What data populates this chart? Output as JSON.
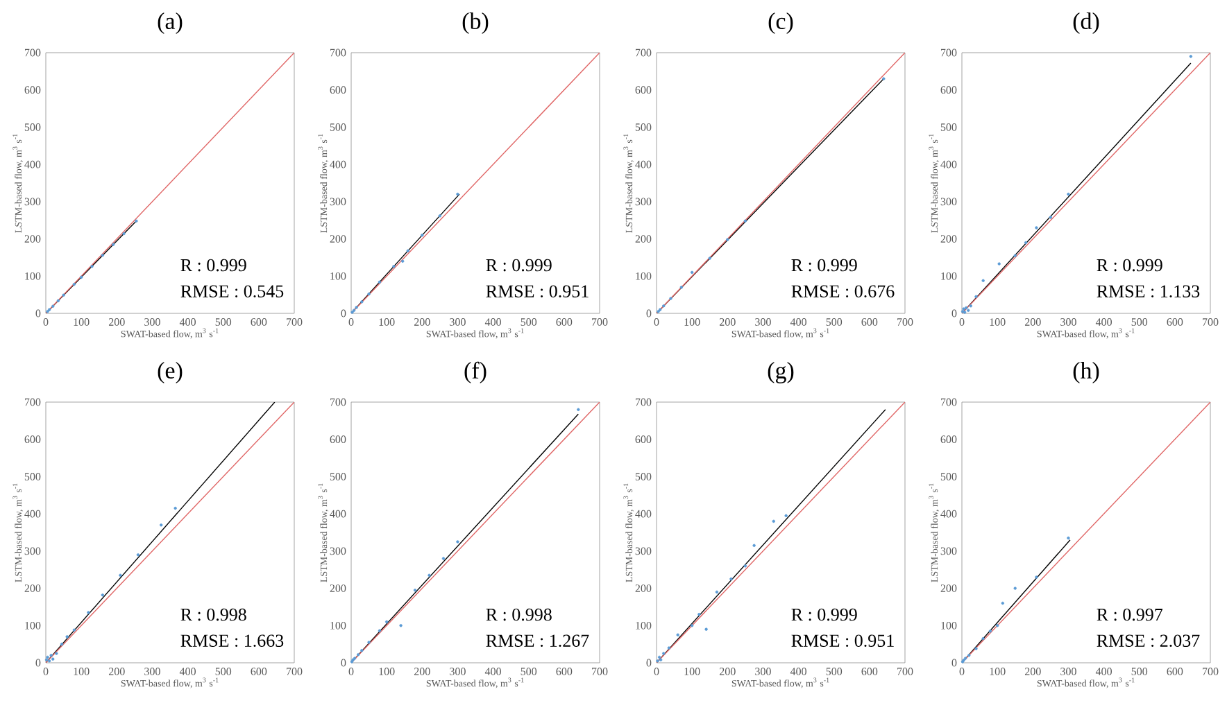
{
  "chart_data": [
    {
      "type": "scatter",
      "title": "(a)",
      "xlabel": "SWAT-based flow, m$^{3}$ s$^{-1}$",
      "ylabel": "LSTM-based flow, m$^{3}$ s$^{-1}$",
      "xlim": [
        0,
        700
      ],
      "ylim": [
        0,
        700
      ],
      "xticks": [
        0,
        100,
        200,
        300,
        400,
        500,
        600,
        700
      ],
      "yticks": [
        0,
        100,
        200,
        300,
        400,
        500,
        600,
        700
      ],
      "annotations": [
        "R : 0.999",
        "RMSE : 0.545"
      ],
      "series": [
        {
          "type": "scatter",
          "marker": "circle",
          "color": "#5b9bd5",
          "x": [
            5,
            10,
            20,
            35,
            50,
            80,
            100,
            130,
            160,
            190,
            220,
            255
          ],
          "values": [
            5,
            10,
            19,
            34,
            49,
            78,
            97,
            126,
            156,
            185,
            214,
            248
          ]
        },
        {
          "type": "line",
          "color": "#000000",
          "x": [
            0,
            255
          ],
          "values": [
            0,
            248
          ]
        },
        {
          "type": "line",
          "color": "#e06666",
          "x": [
            0,
            700
          ],
          "values": [
            0,
            700
          ]
        }
      ]
    },
    {
      "type": "scatter",
      "title": "(b)",
      "xlabel": "SWAT-based flow, m$^{3}$ s$^{-1}$",
      "ylabel": "LSTM-based flow, m$^{3}$ s$^{-1}$",
      "xlim": [
        0,
        700
      ],
      "ylim": [
        0,
        700
      ],
      "xticks": [
        0,
        100,
        200,
        300,
        400,
        500,
        600,
        700
      ],
      "yticks": [
        0,
        100,
        200,
        300,
        400,
        500,
        600,
        700
      ],
      "annotations": [
        "R : 0.999",
        "RMSE : 0.951"
      ],
      "series": [
        {
          "type": "scatter",
          "marker": "circle",
          "color": "#5b9bd5",
          "x": [
            3,
            8,
            15,
            30,
            50,
            80,
            120,
            145,
            160,
            200,
            250,
            300
          ],
          "values": [
            3,
            8,
            16,
            31,
            52,
            84,
            126,
            140,
            168,
            210,
            262,
            320
          ]
        },
        {
          "type": "line",
          "color": "#000000",
          "x": [
            0,
            305
          ],
          "values": [
            0,
            320
          ]
        },
        {
          "type": "line",
          "color": "#e06666",
          "x": [
            0,
            700
          ],
          "values": [
            0,
            700
          ]
        }
      ]
    },
    {
      "type": "scatter",
      "title": "(c)",
      "xlabel": "SWAT-based flow, m$^{3}$ s$^{-1}$",
      "ylabel": "LSTM-based flow, m$^{3}$ s$^{-1}$",
      "xlim": [
        0,
        700
      ],
      "ylim": [
        0,
        700
      ],
      "xticks": [
        0,
        100,
        200,
        300,
        400,
        500,
        600,
        700
      ],
      "yticks": [
        0,
        100,
        200,
        300,
        400,
        500,
        600,
        700
      ],
      "annotations": [
        "R : 0.999",
        "RMSE : 0.676"
      ],
      "series": [
        {
          "type": "scatter",
          "marker": "circle",
          "color": "#5b9bd5",
          "x": [
            5,
            10,
            20,
            40,
            70,
            100,
            150,
            200,
            250,
            640
          ],
          "values": [
            5,
            10,
            20,
            40,
            70,
            110,
            148,
            198,
            248,
            630
          ]
        },
        {
          "type": "line",
          "color": "#000000",
          "x": [
            0,
            640
          ],
          "values": [
            0,
            630
          ]
        },
        {
          "type": "line",
          "color": "#e06666",
          "x": [
            0,
            700
          ],
          "values": [
            0,
            700
          ]
        }
      ]
    },
    {
      "type": "scatter",
      "title": "(d)",
      "xlabel": "SWAT-based flow, m$^{3}$ s$^{-1}$",
      "ylabel": "LSTM-based flow, m$^{3}$ s$^{-1}$",
      "xlim": [
        0,
        700
      ],
      "ylim": [
        0,
        700
      ],
      "xticks": [
        0,
        100,
        200,
        300,
        400,
        500,
        600,
        700
      ],
      "yticks": [
        0,
        100,
        200,
        300,
        400,
        500,
        600,
        700
      ],
      "annotations": [
        "R : 0.999",
        "RMSE : 1.133"
      ],
      "series": [
        {
          "type": "scatter",
          "marker": "circle",
          "color": "#5b9bd5",
          "x": [
            2,
            5,
            8,
            12,
            18,
            25,
            40,
            60,
            105,
            150,
            180,
            210,
            250,
            300,
            645
          ],
          "values": [
            5,
            12,
            3,
            15,
            8,
            20,
            45,
            88,
            133,
            155,
            190,
            230,
            258,
            320,
            690
          ]
        },
        {
          "type": "line",
          "color": "#000000",
          "x": [
            0,
            645
          ],
          "values": [
            0,
            672
          ]
        },
        {
          "type": "line",
          "color": "#e06666",
          "x": [
            0,
            700
          ],
          "values": [
            0,
            700
          ]
        }
      ]
    },
    {
      "type": "scatter",
      "title": "(e)",
      "xlabel": "SWAT-based flow, m$^{3}$ s$^{-1}$",
      "ylabel": "LSTM-based flow, m$^{3}$ s$^{-1}$",
      "xlim": [
        0,
        700
      ],
      "ylim": [
        0,
        700
      ],
      "xticks": [
        0,
        100,
        200,
        300,
        400,
        500,
        600,
        700
      ],
      "yticks": [
        0,
        100,
        200,
        300,
        400,
        500,
        600,
        700
      ],
      "annotations": [
        "R : 0.998",
        "RMSE : 1.663"
      ],
      "series": [
        {
          "type": "scatter",
          "marker": "circle",
          "color": "#5b9bd5",
          "x": [
            2,
            5,
            10,
            15,
            20,
            30,
            45,
            60,
            80,
            120,
            160,
            210,
            260,
            325,
            365
          ],
          "values": [
            8,
            15,
            5,
            20,
            10,
            25,
            50,
            70,
            88,
            135,
            182,
            235,
            290,
            370,
            415
          ]
        },
        {
          "type": "line",
          "color": "#000000",
          "x": [
            0,
            645
          ],
          "values": [
            0,
            700
          ]
        },
        {
          "type": "line",
          "color": "#e06666",
          "x": [
            0,
            700
          ],
          "values": [
            0,
            700
          ]
        }
      ]
    },
    {
      "type": "scatter",
      "title": "(f)",
      "xlabel": "SWAT-based flow, m$^{3}$ s$^{-1}$",
      "ylabel": "LSTM-based flow, m$^{3}$ s$^{-1}$",
      "xlim": [
        0,
        700
      ],
      "ylim": [
        0,
        700
      ],
      "xticks": [
        0,
        100,
        200,
        300,
        400,
        500,
        600,
        700
      ],
      "yticks": [
        0,
        100,
        200,
        300,
        400,
        500,
        600,
        700
      ],
      "annotations": [
        "R : 0.998",
        "RMSE : 1.267"
      ],
      "series": [
        {
          "type": "scatter",
          "marker": "circle",
          "color": "#5b9bd5",
          "x": [
            2,
            5,
            10,
            20,
            30,
            50,
            80,
            100,
            140,
            180,
            220,
            260,
            300,
            640
          ],
          "values": [
            3,
            8,
            12,
            22,
            33,
            55,
            86,
            110,
            100,
            195,
            235,
            280,
            325,
            680
          ]
        },
        {
          "type": "line",
          "color": "#000000",
          "x": [
            0,
            640
          ],
          "values": [
            0,
            668
          ]
        },
        {
          "type": "line",
          "color": "#e06666",
          "x": [
            0,
            700
          ],
          "values": [
            0,
            700
          ]
        }
      ]
    },
    {
      "type": "scatter",
      "title": "(g)",
      "xlabel": "SWAT-based flow, m$^{3}$ s$^{-1}$",
      "ylabel": "LSTM-based flow, m$^{3}$ s$^{-1}$",
      "xlim": [
        0,
        700
      ],
      "ylim": [
        0,
        700
      ],
      "xticks": [
        0,
        100,
        200,
        300,
        400,
        500,
        600,
        700
      ],
      "yticks": [
        0,
        100,
        200,
        300,
        400,
        500,
        600,
        700
      ],
      "annotations": [
        "R : 0.999",
        "RMSE : 0.951"
      ],
      "series": [
        {
          "type": "scatter",
          "marker": "circle",
          "color": "#5b9bd5",
          "x": [
            3,
            8,
            12,
            20,
            35,
            60,
            100,
            120,
            140,
            170,
            210,
            250,
            275,
            330,
            365
          ],
          "values": [
            5,
            15,
            8,
            25,
            40,
            75,
            100,
            130,
            90,
            190,
            225,
            260,
            315,
            380,
            395
          ]
        },
        {
          "type": "line",
          "color": "#000000",
          "x": [
            0,
            645
          ],
          "values": [
            0,
            680
          ]
        },
        {
          "type": "line",
          "color": "#e06666",
          "x": [
            0,
            700
          ],
          "values": [
            0,
            700
          ]
        }
      ]
    },
    {
      "type": "scatter",
      "title": "(h)",
      "xlabel": "SWAT-based flow, m$^{3}$ s$^{-1}$",
      "ylabel": "LSTM-based flow, m$^{3}$ s$^{-1}$",
      "xlim": [
        0,
        700
      ],
      "ylim": [
        0,
        700
      ],
      "xticks": [
        0,
        100,
        200,
        300,
        400,
        500,
        600,
        700
      ],
      "yticks": [
        0,
        100,
        200,
        300,
        400,
        500,
        600,
        700
      ],
      "annotations": [
        "R : 0.997",
        "RMSE : 2.037"
      ],
      "series": [
        {
          "type": "scatter",
          "marker": "circle",
          "color": "#5b9bd5",
          "x": [
            2,
            5,
            10,
            20,
            40,
            60,
            80,
            100,
            115,
            150,
            210,
            300
          ],
          "values": [
            3,
            7,
            12,
            20,
            38,
            65,
            85,
            100,
            160,
            200,
            230,
            335
          ]
        },
        {
          "type": "line",
          "color": "#000000",
          "x": [
            0,
            305
          ],
          "values": [
            0,
            330
          ]
        },
        {
          "type": "line",
          "color": "#e06666",
          "x": [
            0,
            700
          ],
          "values": [
            0,
            700
          ]
        }
      ]
    }
  ]
}
